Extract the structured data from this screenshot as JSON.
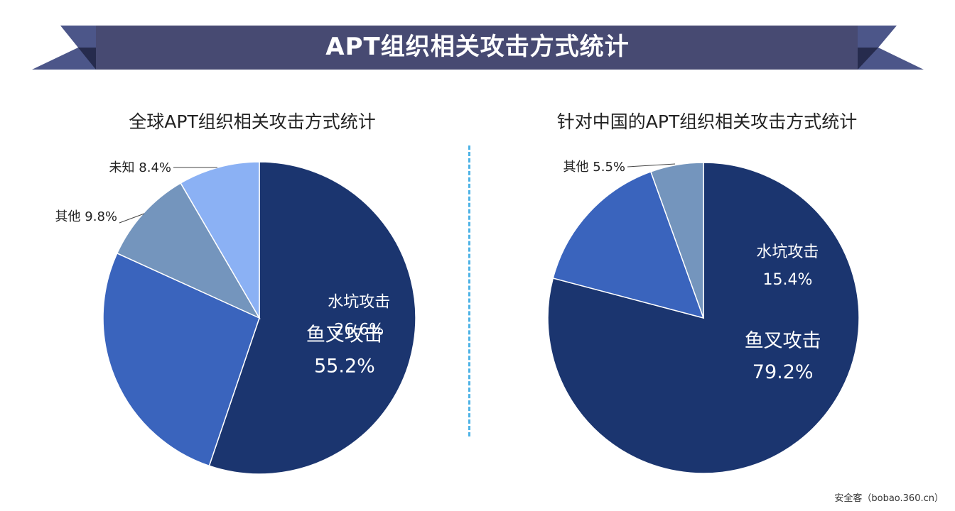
{
  "header": {
    "title": "APT组织相关攻击方式统计",
    "band_color": "#474a72",
    "ribbon_color": "#4c5689",
    "fold_color": "#262b4d"
  },
  "divider_color": "#4eb3e6",
  "watermark": "安全客（bobao.360.cn）",
  "chart_data": [
    {
      "type": "pie",
      "title": "全球APT组织相关攻击方式统计",
      "slices": [
        {
          "name": "鱼叉攻击",
          "value": 55.2,
          "label": "55.2%",
          "color": "#1b356f",
          "label_placement": "inside"
        },
        {
          "name": "水坑攻击",
          "value": 26.6,
          "label": "26.6%",
          "color": "#3a64bd",
          "label_placement": "inside"
        },
        {
          "name": "其他",
          "value": 9.8,
          "label": "9.8%",
          "color": "#7495bd",
          "label_placement": "outside"
        },
        {
          "name": "未知",
          "value": 8.4,
          "label": "8.4%",
          "color": "#8bb1f4",
          "label_placement": "outside"
        }
      ]
    },
    {
      "type": "pie",
      "title": "针对中国的APT组织相关攻击方式统计",
      "slices": [
        {
          "name": "鱼叉攻击",
          "value": 79.2,
          "label": "79.2%",
          "color": "#1b356f",
          "label_placement": "inside"
        },
        {
          "name": "水坑攻击",
          "value": 15.4,
          "label": "15.4%",
          "color": "#3a64bd",
          "label_placement": "inside"
        },
        {
          "name": "其他",
          "value": 5.5,
          "label": "5.5%",
          "color": "#7495bd",
          "label_placement": "outside"
        }
      ]
    }
  ]
}
